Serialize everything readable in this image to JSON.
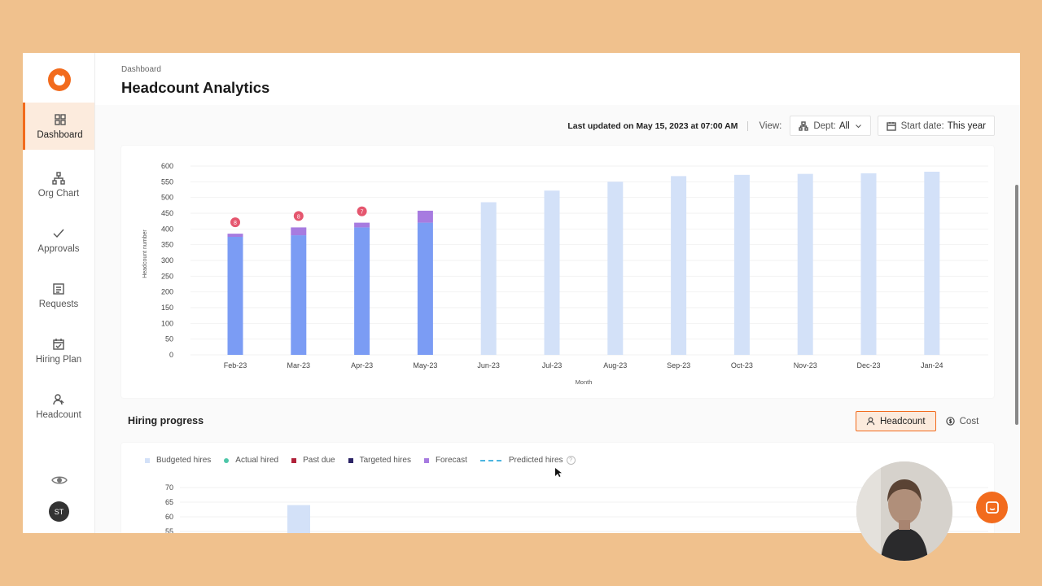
{
  "sidebar": {
    "items": [
      {
        "label": "Dashboard",
        "icon": "grid-icon",
        "active": true
      },
      {
        "label": "Org Chart",
        "icon": "org-chart-icon"
      },
      {
        "label": "Approvals",
        "icon": "check-icon"
      },
      {
        "label": "Requests",
        "icon": "list-icon"
      },
      {
        "label": "Hiring Plan",
        "icon": "calendar-icon"
      },
      {
        "label": "Headcount",
        "icon": "users-icon"
      }
    ],
    "user_initials": "ST"
  },
  "header": {
    "breadcrumb": "Dashboard",
    "title": "Headcount Analytics"
  },
  "toolbar": {
    "last_updated": "Last updated on May 15, 2023 at 07:00 AM",
    "view_label": "View:",
    "dept_label": "Dept:",
    "dept_value": "All",
    "start_label": "Start date:",
    "start_value": "This year"
  },
  "colors": {
    "accent": "#F26B1D",
    "actual": "#7B9CF4",
    "forecast": "#A77BE0",
    "budgeted": "#D3E1F8",
    "badge": "#E5566E"
  },
  "chart_data": {
    "type": "bar",
    "xlabel": "Month",
    "ylabel": "Headcount number",
    "ylim": [
      0,
      600
    ],
    "yticks": [
      0,
      50,
      100,
      150,
      200,
      250,
      300,
      350,
      400,
      450,
      500,
      550,
      600
    ],
    "categories": [
      "Feb-23",
      "Mar-23",
      "Apr-23",
      "May-23",
      "Jun-23",
      "Jul-23",
      "Aug-23",
      "Sep-23",
      "Oct-23",
      "Nov-23",
      "Dec-23",
      "Jan-24"
    ],
    "series": [
      {
        "name": "Actual",
        "values": [
          375,
          380,
          405,
          420,
          0,
          0,
          0,
          0,
          0,
          0,
          0,
          0
        ]
      },
      {
        "name": "Forecast",
        "values": [
          10,
          25,
          15,
          38,
          0,
          0,
          0,
          0,
          0,
          0,
          0,
          0
        ]
      },
      {
        "name": "Budgeted",
        "values": [
          0,
          0,
          0,
          0,
          485,
          522,
          550,
          568,
          572,
          575,
          577,
          582
        ]
      }
    ],
    "badges": [
      {
        "category": "Feb-23",
        "text": "8"
      },
      {
        "category": "Mar-23",
        "text": "8"
      },
      {
        "category": "Apr-23",
        "text": "7"
      }
    ]
  },
  "hiring_progress": {
    "title": "Hiring progress",
    "toggle": [
      "Headcount",
      "Cost"
    ],
    "legend": [
      {
        "label": "Budgeted hires",
        "color": "#D3E1F8"
      },
      {
        "label": "Actual hired",
        "color": "#4DC6A8"
      },
      {
        "label": "Past due",
        "color": "#B0223A"
      },
      {
        "label": "Targeted hires",
        "color": "#2C2466"
      },
      {
        "label": "Forecast",
        "color": "#A77BE0"
      },
      {
        "label": "Predicted hires",
        "color": "#4DB6E0"
      }
    ],
    "chart_data": {
      "type": "bar",
      "yticks": [
        55,
        60,
        65,
        70
      ],
      "ylim": [
        55,
        70
      ],
      "values": [
        64
      ]
    }
  }
}
